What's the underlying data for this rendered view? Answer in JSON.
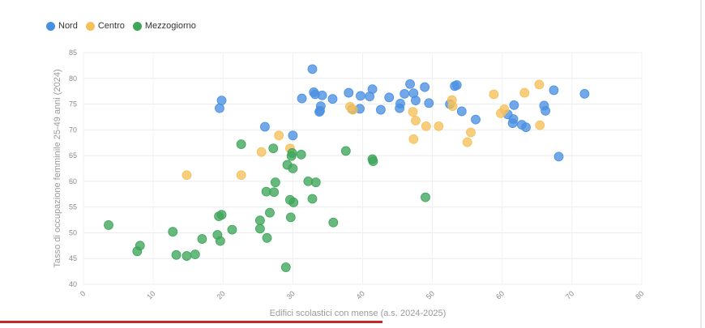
{
  "chart_data": {
    "type": "scatter",
    "xlabel": "Edifici scolastici con mense (a.s. 2024-2025)",
    "ylabel": "Tasso di occupazione femminile 25-49 anni (2024)",
    "xlim": [
      0,
      80
    ],
    "ylim": [
      40,
      85
    ],
    "x_ticks": [
      "0",
      "10",
      "20",
      "30",
      "40",
      "50",
      "60",
      "70",
      "80"
    ],
    "y_ticks": [
      "40",
      "45",
      "50",
      "55",
      "60",
      "65",
      "70",
      "75",
      "80",
      "85"
    ],
    "grid": true,
    "legend_position": "top-left",
    "series": [
      {
        "name": "Nord",
        "color": "#4a90e2",
        "points": [
          [
            32.8,
            81.8
          ],
          [
            33.0,
            77.3
          ],
          [
            33.2,
            76.9
          ],
          [
            31.3,
            76.1
          ],
          [
            34.2,
            76.7
          ],
          [
            35.7,
            76.0
          ],
          [
            34.0,
            74.6
          ],
          [
            33.8,
            73.5
          ],
          [
            33.9,
            73.7
          ],
          [
            38.0,
            77.2
          ],
          [
            39.7,
            76.6
          ],
          [
            41.0,
            76.5
          ],
          [
            41.4,
            77.9
          ],
          [
            43.8,
            76.3
          ],
          [
            42.6,
            73.9
          ],
          [
            38.5,
            74.0
          ],
          [
            39.6,
            74.1
          ],
          [
            45.4,
            75.1
          ],
          [
            45.3,
            74.2
          ],
          [
            46.0,
            77.0
          ],
          [
            46.8,
            78.9
          ],
          [
            47.3,
            77.1
          ],
          [
            47.6,
            75.7
          ],
          [
            48.9,
            78.3
          ],
          [
            49.5,
            75.2
          ],
          [
            52.5,
            75.0
          ],
          [
            53.2,
            78.5
          ],
          [
            53.5,
            78.7
          ],
          [
            54.2,
            73.6
          ],
          [
            56.2,
            72.0
          ],
          [
            60.8,
            73.0
          ],
          [
            61.5,
            71.3
          ],
          [
            61.6,
            72.1
          ],
          [
            61.7,
            74.8
          ],
          [
            62.8,
            71.0
          ],
          [
            63.4,
            70.5
          ],
          [
            66.0,
            74.7
          ],
          [
            66.2,
            73.7
          ],
          [
            67.4,
            77.7
          ],
          [
            68.1,
            64.8
          ],
          [
            71.8,
            77.0
          ],
          [
            19.5,
            74.2
          ],
          [
            19.8,
            75.7
          ],
          [
            26.0,
            70.6
          ],
          [
            30.0,
            68.9
          ]
        ]
      },
      {
        "name": "Centro",
        "color": "#f5c05a",
        "points": [
          [
            14.8,
            61.2
          ],
          [
            22.6,
            61.2
          ],
          [
            25.5,
            65.7
          ],
          [
            28.0,
            68.9
          ],
          [
            29.6,
            66.4
          ],
          [
            38.2,
            74.5
          ],
          [
            38.6,
            73.9
          ],
          [
            47.2,
            73.5
          ],
          [
            47.6,
            71.8
          ],
          [
            47.3,
            68.2
          ],
          [
            49.1,
            70.7
          ],
          [
            50.9,
            70.7
          ],
          [
            52.8,
            75.8
          ],
          [
            52.9,
            74.6
          ],
          [
            55.0,
            67.6
          ],
          [
            55.5,
            69.5
          ],
          [
            58.8,
            76.9
          ],
          [
            59.8,
            73.2
          ],
          [
            60.3,
            74.0
          ],
          [
            63.2,
            77.2
          ],
          [
            65.3,
            78.8
          ],
          [
            65.4,
            70.9
          ]
        ]
      },
      {
        "name": "Mezzogiorno",
        "color": "#3ea55a",
        "points": [
          [
            3.6,
            51.5
          ],
          [
            7.7,
            46.4
          ],
          [
            8.1,
            47.5
          ],
          [
            12.8,
            50.2
          ],
          [
            13.3,
            45.7
          ],
          [
            14.8,
            45.5
          ],
          [
            16.0,
            45.8
          ],
          [
            17.0,
            48.8
          ],
          [
            19.2,
            49.6
          ],
          [
            19.4,
            53.2
          ],
          [
            19.6,
            48.4
          ],
          [
            19.8,
            53.5
          ],
          [
            21.3,
            50.6
          ],
          [
            22.6,
            67.2
          ],
          [
            25.3,
            52.4
          ],
          [
            25.3,
            50.8
          ],
          [
            26.2,
            58.0
          ],
          [
            26.3,
            49.0
          ],
          [
            26.7,
            53.9
          ],
          [
            27.3,
            57.9
          ],
          [
            27.5,
            59.8
          ],
          [
            27.2,
            66.4
          ],
          [
            29.0,
            43.3
          ],
          [
            29.2,
            63.2
          ],
          [
            29.6,
            56.4
          ],
          [
            29.7,
            53.0
          ],
          [
            29.8,
            64.9
          ],
          [
            30.0,
            62.5
          ],
          [
            30.1,
            55.9
          ],
          [
            31.2,
            65.2
          ],
          [
            32.2,
            60.0
          ],
          [
            32.8,
            56.6
          ],
          [
            33.3,
            59.8
          ],
          [
            35.8,
            52.0
          ],
          [
            37.6,
            65.9
          ],
          [
            41.4,
            64.3
          ],
          [
            41.5,
            63.9
          ],
          [
            49.0,
            56.9
          ],
          [
            29.9,
            65.5
          ]
        ]
      }
    ]
  }
}
